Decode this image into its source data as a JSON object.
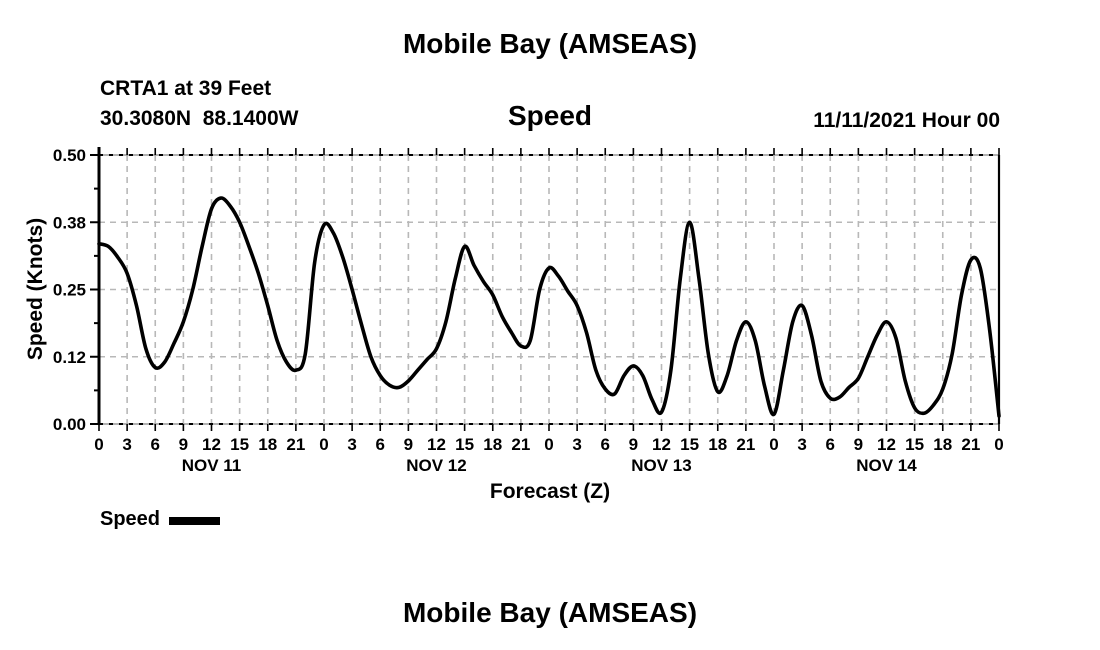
{
  "page": {
    "top_title": "Mobile Bay (AMSEAS)",
    "bottom_title": "Mobile Bay (AMSEAS)"
  },
  "header": {
    "station_line1": "CRTA1 at 39 Feet",
    "station_line2": "30.3080N  88.1400W",
    "panel_title": "Speed",
    "run_time": "11/11/2021 Hour 00"
  },
  "legend": {
    "label": "Speed",
    "swatch_color": "#000000",
    "position": "bottom-left"
  },
  "chart_data": {
    "type": "line",
    "title": "Mobile Bay (AMSEAS)",
    "subtitle": "Speed",
    "station": "CRTA1 at 39 Feet",
    "location": "30.3080N  88.1400W",
    "run_label": "11/11/2021 Hour 00",
    "xlabel": "Forecast (Z)",
    "ylabel": "Speed (Knots)",
    "ylim": [
      0,
      0.5
    ],
    "ytick_values": [
      0,
      0.125,
      0.25,
      0.375,
      0.5
    ],
    "ytick_labels": [
      "0.00",
      "0.12",
      "0.25",
      "0.38",
      "0.50"
    ],
    "ytick_minor_values": [
      0.0625,
      0.1875,
      0.3125,
      0.4375
    ],
    "grid_ytick_values": [
      0.125,
      0.25,
      0.375
    ],
    "xlim_hours": [
      0,
      96
    ],
    "xtick_interval_hours": 3,
    "xtick_labels": [
      "0",
      "3",
      "6",
      "9",
      "12",
      "15",
      "18",
      "21",
      "0",
      "3",
      "6",
      "9",
      "12",
      "15",
      "18",
      "21",
      "0",
      "3",
      "6",
      "9",
      "12",
      "15",
      "18",
      "21",
      "0",
      "3",
      "6",
      "9",
      "12",
      "15",
      "18",
      "21",
      "0"
    ],
    "day_labels": [
      {
        "label": "NOV 11",
        "hour": 12
      },
      {
        "label": "NOV 12",
        "hour": 36
      },
      {
        "label": "NOV 13",
        "hour": 60
      },
      {
        "label": "NOV 14",
        "hour": 84
      }
    ],
    "grid": {
      "color": "#b8b8b8",
      "dashed": true
    },
    "frame_color": "#999999",
    "x": [
      0,
      1,
      2,
      3,
      4,
      5,
      6,
      7,
      8,
      9,
      10,
      11,
      12,
      13,
      14,
      15,
      16,
      17,
      18,
      19,
      20,
      21,
      22,
      23,
      24,
      25,
      26,
      27,
      28,
      29,
      30,
      31,
      32,
      33,
      34,
      35,
      36,
      37,
      38,
      39,
      40,
      41,
      42,
      43,
      44,
      45,
      46,
      47,
      48,
      49,
      50,
      51,
      52,
      53,
      54,
      55,
      56,
      57,
      58,
      59,
      60,
      61,
      62,
      63,
      64,
      65,
      66,
      67,
      68,
      69,
      70,
      71,
      72,
      73,
      74,
      75,
      76,
      77,
      78,
      79,
      80,
      81,
      82,
      83,
      84,
      85,
      86,
      87,
      88,
      89,
      90,
      91,
      92,
      93,
      94,
      95,
      96
    ],
    "series": [
      {
        "name": "Speed",
        "color": "#000000",
        "values": [
          0.335,
          0.33,
          0.31,
          0.28,
          0.22,
          0.14,
          0.105,
          0.115,
          0.15,
          0.19,
          0.25,
          0.33,
          0.4,
          0.42,
          0.405,
          0.375,
          0.33,
          0.28,
          0.22,
          0.155,
          0.115,
          0.1,
          0.13,
          0.3,
          0.37,
          0.355,
          0.31,
          0.25,
          0.185,
          0.125,
          0.09,
          0.072,
          0.068,
          0.08,
          0.1,
          0.12,
          0.14,
          0.19,
          0.27,
          0.33,
          0.295,
          0.265,
          0.24,
          0.2,
          0.17,
          0.145,
          0.155,
          0.25,
          0.29,
          0.275,
          0.247,
          0.22,
          0.17,
          0.1,
          0.065,
          0.056,
          0.09,
          0.108,
          0.09,
          0.045,
          0.022,
          0.1,
          0.27,
          0.375,
          0.27,
          0.13,
          0.06,
          0.09,
          0.155,
          0.19,
          0.155,
          0.07,
          0.018,
          0.1,
          0.19,
          0.22,
          0.165,
          0.08,
          0.048,
          0.05,
          0.068,
          0.085,
          0.125,
          0.165,
          0.19,
          0.16,
          0.08,
          0.03,
          0.02,
          0.035,
          0.065,
          0.13,
          0.24,
          0.305,
          0.29,
          0.175,
          0.015
        ]
      }
    ]
  }
}
